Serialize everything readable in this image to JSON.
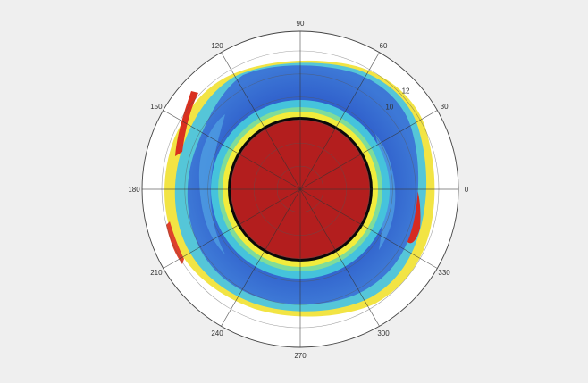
{
  "chart_data": {
    "type": "heatmap",
    "projection": "polar",
    "angular_ticks": [
      {
        "angle": 0,
        "label": "0"
      },
      {
        "angle": 30,
        "label": "30"
      },
      {
        "angle": 60,
        "label": "60"
      },
      {
        "angle": 90,
        "label": "90"
      },
      {
        "angle": 120,
        "label": "120"
      },
      {
        "angle": 150,
        "label": "150"
      },
      {
        "angle": 180,
        "label": "180"
      },
      {
        "angle": 210,
        "label": "210"
      },
      {
        "angle": 240,
        "label": "240"
      },
      {
        "angle": 270,
        "label": "270"
      },
      {
        "angle": 300,
        "label": "300"
      },
      {
        "angle": 330,
        "label": "330"
      }
    ],
    "radial_ticks": [
      {
        "value": 10,
        "label": "10"
      },
      {
        "value": 12,
        "label": "12"
      }
    ],
    "radial_range": [
      0,
      12
    ],
    "grid": true,
    "colormap": "jet",
    "colors": {
      "core": "#b31e1e",
      "core_edge": "#0a0a0a",
      "ring_yellow": "#f2ec3c",
      "ring_cyan": "#3fc7dc",
      "mid_blue": "#2e5fcf",
      "outer_yellow": "#f1e33a",
      "outer_red": "#d62a20",
      "background": "#efefef"
    }
  }
}
